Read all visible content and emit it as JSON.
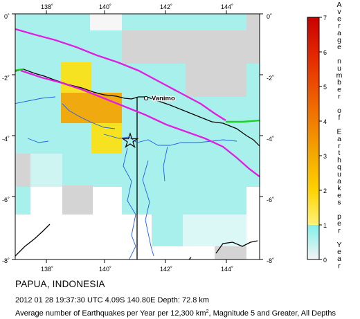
{
  "map": {
    "x_ticks": [
      "138˚",
      "140˚",
      "142˚",
      "144˚"
    ],
    "y_ticks_left": [
      "0˚",
      "-2˚",
      "-4˚",
      "-6˚",
      "-8˚"
    ],
    "y_ticks_right": [
      "0˚",
      "-2˚",
      "-4˚",
      "-6˚",
      "-8˚"
    ],
    "city_label": "Vanimo",
    "marker": "star-icon",
    "colors": {
      "low": "#a0f0ec",
      "mid": "#f5f0a0",
      "high": "#f0a000",
      "plate_boundary_magenta": "#e020e0",
      "plate_boundary_green": "#20d020",
      "rivers": "#2060e0",
      "gray_cells": "#d4d4d4",
      "white_cells": "#f6f6f6"
    }
  },
  "legend": {
    "title_letters": [
      "A",
      "v",
      "e",
      "r",
      "a",
      "g",
      "e",
      "",
      "n",
      "u",
      "m",
      "b",
      "e",
      "r",
      "",
      "o",
      "f",
      "",
      "E",
      "a",
      "r",
      "t",
      "h",
      "q",
      "u",
      "a",
      "k",
      "e",
      "s",
      "",
      "p",
      "e",
      "r",
      "",
      "Y",
      "e",
      "a",
      "r"
    ],
    "ticks": [
      "7",
      "6",
      "5",
      "4",
      "3",
      "2",
      "1",
      "0"
    ]
  },
  "caption": {
    "region": "PAPUA, INDONESIA",
    "event": "2012 01 28 19:37:30 UTC 4.09S 140.80E Depth: 72.8 km",
    "desc_prefix": "Average number of Earthquakes per Year per 12,300 km",
    "desc_sup": "2",
    "desc_suffix": ", Magnitude 5 and Greater, All Depths"
  }
}
